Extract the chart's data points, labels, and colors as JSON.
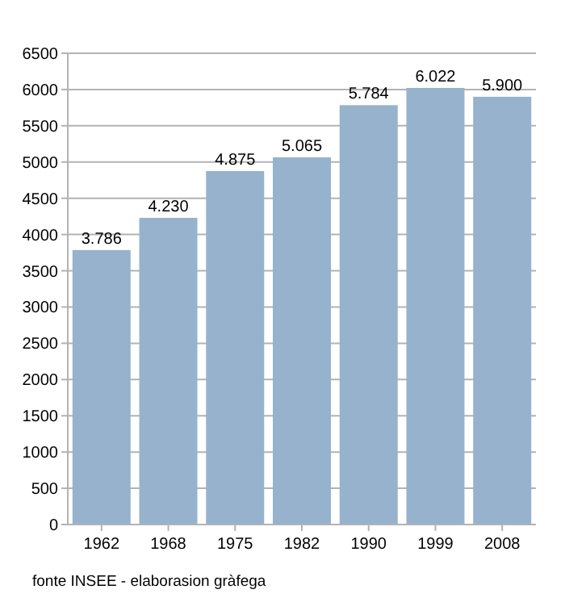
{
  "chart_data": {
    "type": "bar",
    "categories": [
      "1962",
      "1968",
      "1975",
      "1982",
      "1990",
      "1999",
      "2008"
    ],
    "values": [
      3786,
      4230,
      4875,
      5065,
      5784,
      6022,
      5900
    ],
    "value_labels": [
      "3.786",
      "4.230",
      "4.875",
      "5.065",
      "5.784",
      "6.022",
      "5.900"
    ],
    "color": "#97b2cd",
    "ylim": [
      0,
      6500
    ],
    "yticks": [
      0,
      500,
      1000,
      1500,
      2000,
      2500,
      3000,
      3500,
      4000,
      4500,
      5000,
      5500,
      6000,
      6500
    ],
    "grid": "y",
    "annotations": [
      "fonte INSEE - elaborasion gràfega"
    ]
  }
}
